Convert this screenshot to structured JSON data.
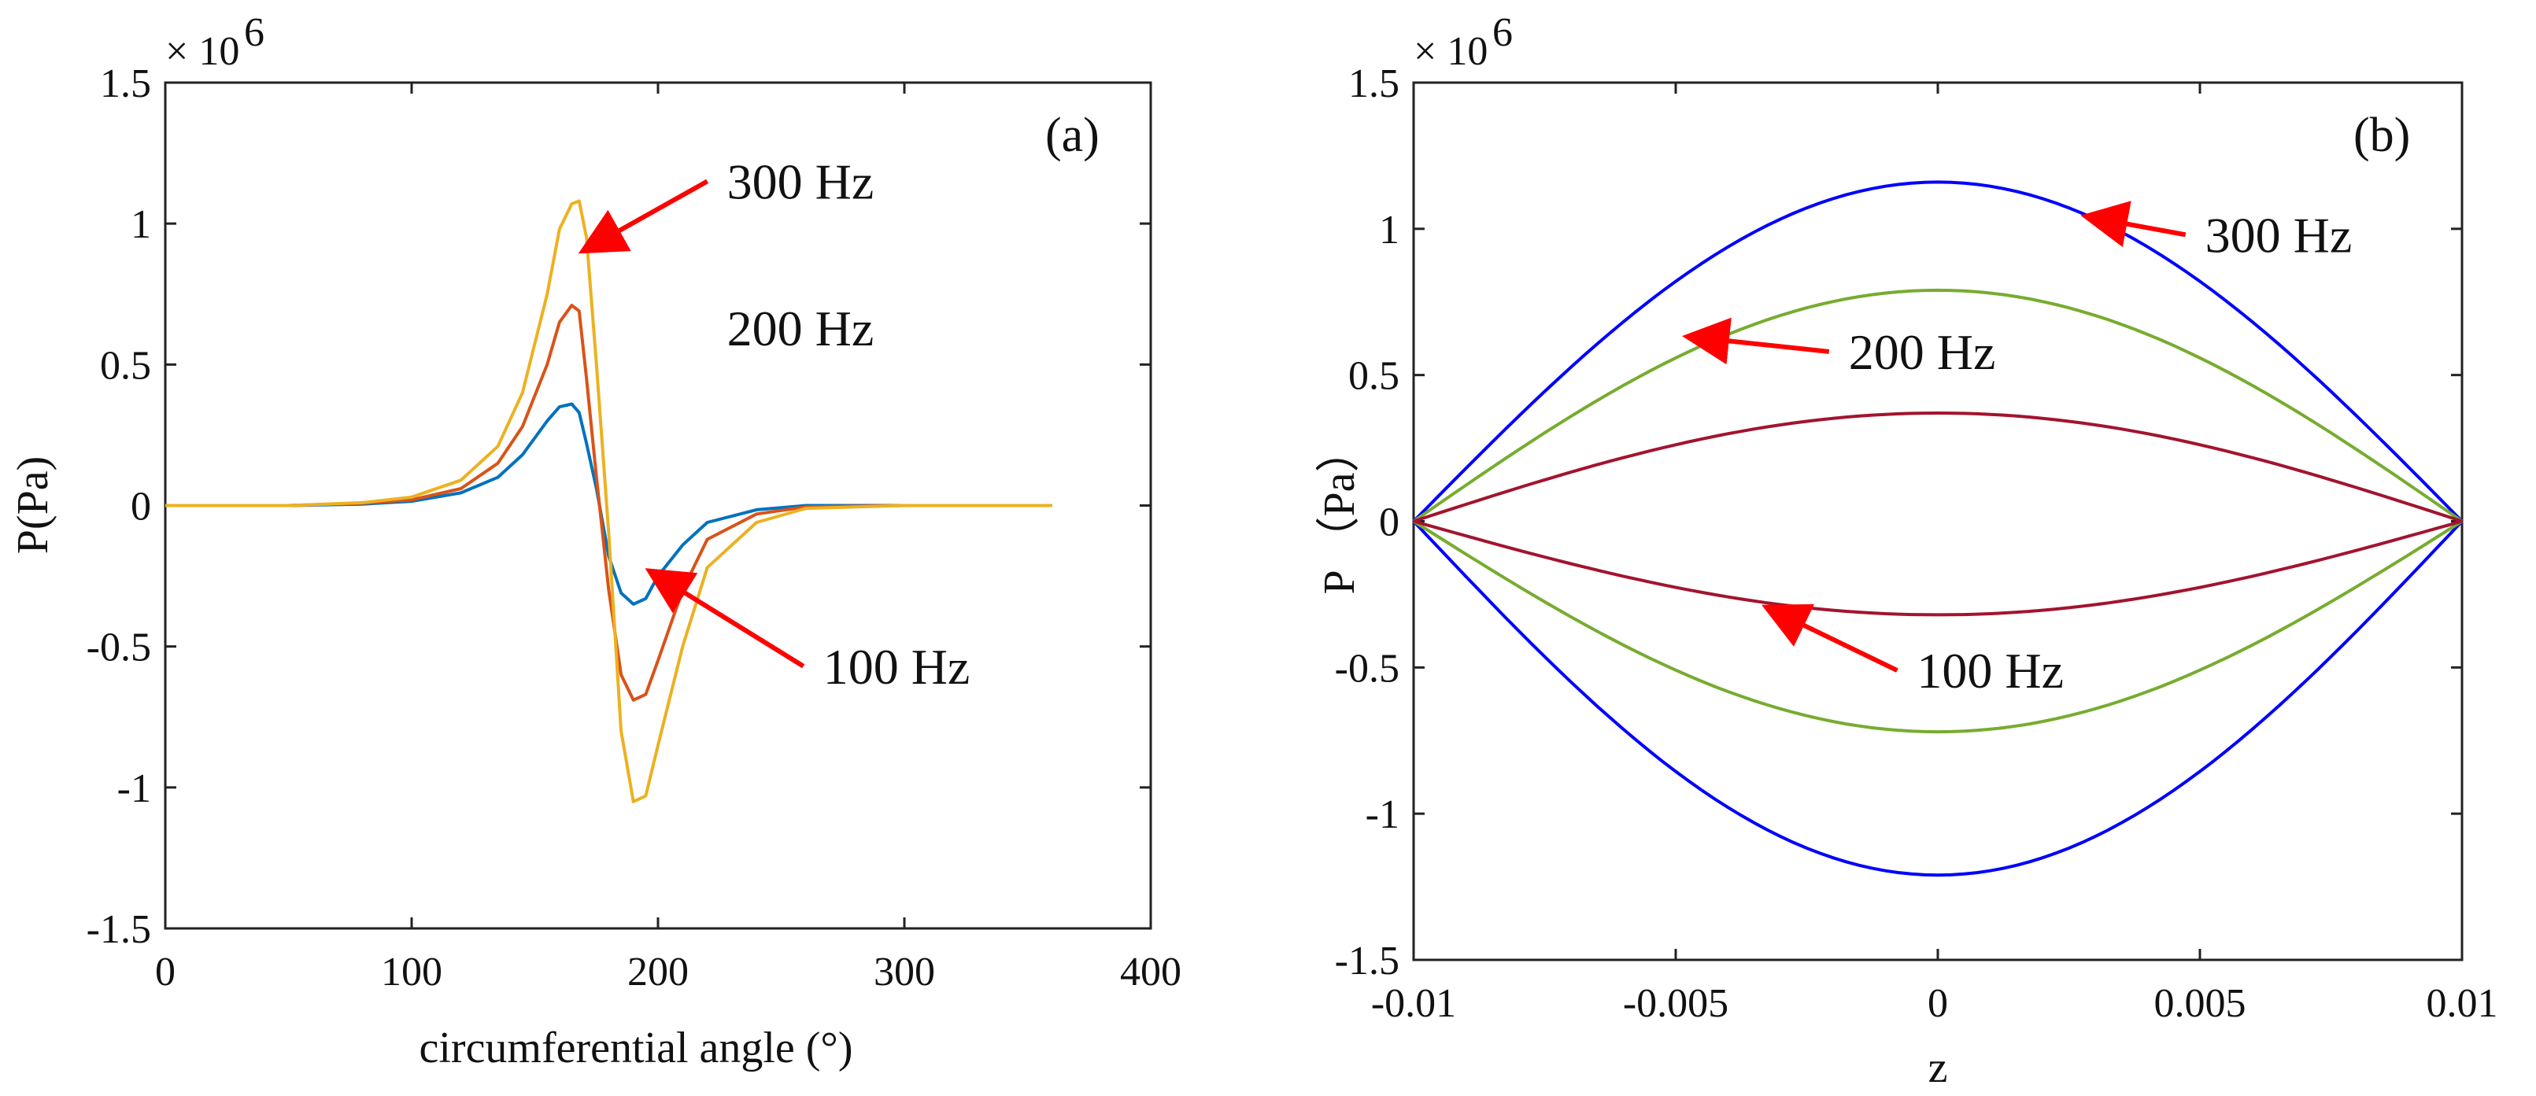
{
  "chart_data": [
    {
      "panel": "a",
      "type": "line",
      "panel_label": "(a)",
      "xlabel": "circumferential angle (°)",
      "ylabel": "P(Pa)",
      "multiplier": "× 10",
      "multiplier_exp": "6",
      "xlim": [
        0,
        400
      ],
      "ylim": [
        -1.5,
        1.5
      ],
      "x_ticks": [
        0,
        100,
        200,
        300,
        400
      ],
      "y_ticks": [
        1.5,
        1,
        0.5,
        0,
        -0.5,
        -1,
        -1.5
      ],
      "x_tick_labels": [
        "0",
        "100",
        "200",
        "300",
        "400"
      ],
      "y_tick_labels": [
        "1.5",
        "1",
        "0.5",
        "0",
        "-0.5",
        "-1",
        "-1.5"
      ],
      "x": [
        0,
        50,
        80,
        100,
        120,
        135,
        145,
        155,
        160,
        165,
        168,
        171,
        175,
        180,
        185,
        190,
        195,
        200,
        210,
        220,
        240,
        260,
        300,
        360
      ],
      "series": [
        {
          "name": "100 Hz",
          "color": "#0072BD",
          "values": [
            0,
            0,
            0.005,
            0.015,
            0.045,
            0.1,
            0.18,
            0.3,
            0.35,
            0.36,
            0.33,
            0.22,
            0.06,
            -0.18,
            -0.31,
            -0.35,
            -0.33,
            -0.25,
            -0.14,
            -0.06,
            -0.015,
            0,
            0,
            0
          ]
        },
        {
          "name": "200 Hz",
          "color": "#D95319",
          "values": [
            0,
            0,
            0.008,
            0.02,
            0.06,
            0.15,
            0.28,
            0.5,
            0.65,
            0.71,
            0.69,
            0.45,
            0.1,
            -0.3,
            -0.6,
            -0.69,
            -0.67,
            -0.55,
            -0.3,
            -0.12,
            -0.03,
            -0.005,
            0,
            0
          ]
        },
        {
          "name": "300 Hz",
          "color": "#EDB120",
          "values": [
            0,
            0,
            0.01,
            0.03,
            0.09,
            0.21,
            0.4,
            0.75,
            0.98,
            1.07,
            1.08,
            0.95,
            0.5,
            -0.1,
            -0.8,
            -1.05,
            -1.03,
            -0.85,
            -0.5,
            -0.22,
            -0.06,
            -0.01,
            0,
            0
          ]
        }
      ],
      "annotations": [
        {
          "text": "300 Hz",
          "x": 228,
          "y": 1.15,
          "arrow_to": [
            171,
            0.91
          ]
        },
        {
          "text": "200 Hz",
          "x": 228,
          "y": 0.63
        },
        {
          "text": "100 Hz",
          "x": 267,
          "y": -0.57,
          "arrow_to": [
            198,
            -0.24
          ]
        }
      ]
    },
    {
      "panel": "b",
      "type": "line",
      "panel_label": "(b)",
      "xlabel": "z",
      "ylabel": "P （Pa）",
      "multiplier": "× 10",
      "multiplier_exp": "6",
      "xlim": [
        -0.01,
        0.01
      ],
      "ylim": [
        -1.5,
        1.5
      ],
      "x_ticks": [
        -0.01,
        -0.005,
        0,
        0.005,
        0.01
      ],
      "y_ticks": [
        1.5,
        1,
        0.5,
        0,
        -0.5,
        -1,
        -1.5
      ],
      "x_tick_labels": [
        "-0.01",
        "-0.005",
        "0",
        "0.005",
        "0.01"
      ],
      "y_tick_labels": [
        "1.5",
        "1",
        "0.5",
        "0",
        "-0.5",
        "-1",
        "-1.5"
      ],
      "series": [
        {
          "name": "300 Hz",
          "color": "#0000FF",
          "peak_top": 1.16,
          "peak_bottom": -1.21
        },
        {
          "name": "200 Hz",
          "color": "#77AC30",
          "peak_top": 0.79,
          "peak_bottom": -0.72
        },
        {
          "name": "100 Hz",
          "color": "#A2142F",
          "peak_top": 0.37,
          "peak_bottom": -0.32
        }
      ],
      "annotations": [
        {
          "text": "300 Hz",
          "x": 0.0051,
          "y": 0.98,
          "arrow_to": [
            0.0029,
            1.04
          ]
        },
        {
          "text": "200 Hz",
          "x": -0.0017,
          "y": 0.58,
          "arrow_to": [
            -0.0047,
            0.63
          ]
        },
        {
          "text": "100 Hz",
          "x": -0.0004,
          "y": -0.51,
          "arrow_to": [
            -0.0032,
            -0.3
          ]
        }
      ]
    }
  ]
}
